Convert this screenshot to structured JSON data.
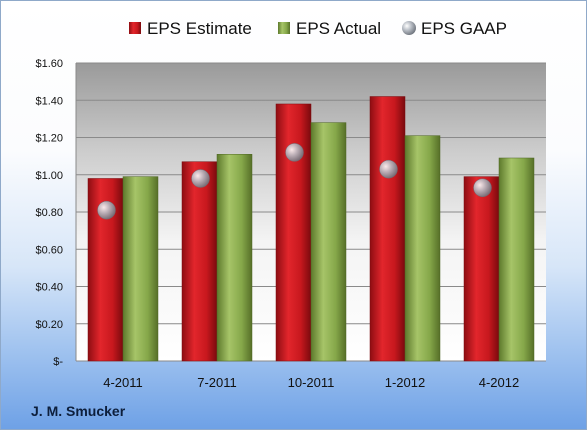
{
  "company": "J. M. Smucker",
  "chart_data": {
    "type": "bar",
    "categories": [
      "4-2011",
      "7-2011",
      "10-2011",
      "1-2012",
      "4-2012"
    ],
    "series": [
      {
        "name": "EPS Estimate",
        "type": "bar",
        "color": "#c8181e",
        "values": [
          0.98,
          1.07,
          1.38,
          1.42,
          0.99
        ]
      },
      {
        "name": "EPS Actual",
        "type": "bar",
        "color": "#86a84a",
        "values": [
          0.99,
          1.11,
          1.28,
          1.21,
          1.09
        ]
      },
      {
        "name": "EPS GAAP",
        "type": "scatter",
        "color": "#a9b0ba",
        "values": [
          0.81,
          0.98,
          1.12,
          1.03,
          0.93
        ]
      }
    ],
    "ylim": [
      0,
      1.6
    ],
    "yticks": [
      0,
      0.2,
      0.4,
      0.6,
      0.8,
      1.0,
      1.2,
      1.4,
      1.6
    ],
    "ytick_labels": [
      "$-",
      "$0.20",
      "$0.40",
      "$0.60",
      "$0.80",
      "$1.00",
      "$1.20",
      "$1.40",
      "$1.60"
    ],
    "grid": true,
    "legend": "top"
  }
}
